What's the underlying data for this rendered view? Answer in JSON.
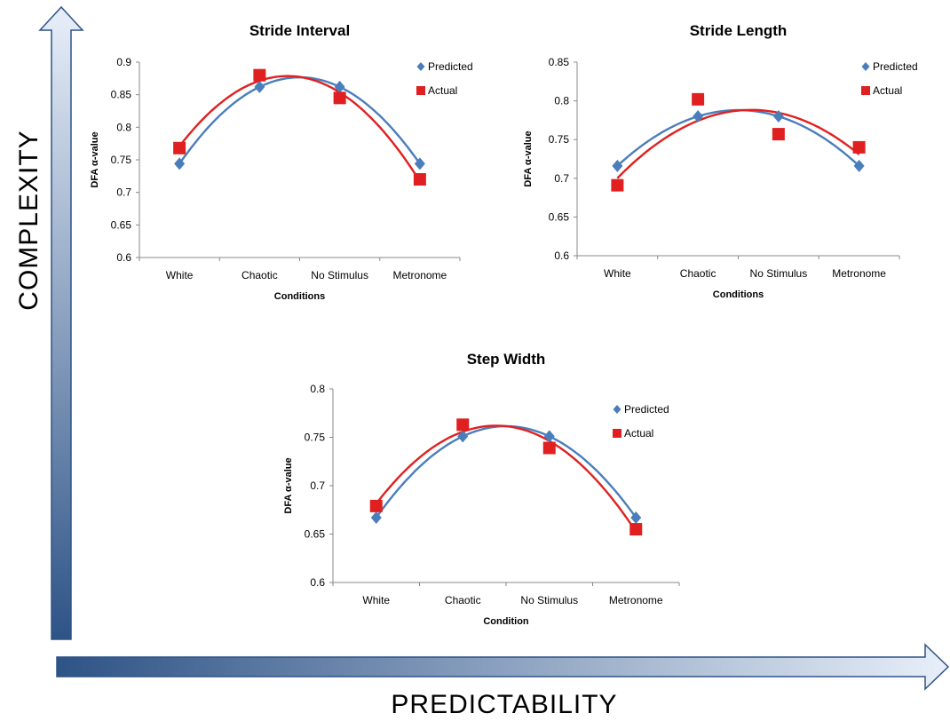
{
  "axes": {
    "vertical_label": "COMPLEXITY",
    "horizontal_label": "PREDICTABILITY"
  },
  "colors": {
    "predicted": "#4a7ebb",
    "actual": "#e02020",
    "arrow_dark": "#2e5386",
    "arrow_light": "#dbe6f5"
  },
  "chart_data": [
    {
      "type": "scatter",
      "title": "Stride Interval",
      "xlabel": "Conditions",
      "ylabel": "DFA α-value",
      "categories": [
        "White",
        "Chaotic",
        "No Stimulus",
        "Metronome"
      ],
      "ylim": [
        0.6,
        0.9
      ],
      "yticks": [
        "0.6",
        "0.65",
        "0.7",
        "0.75",
        "0.8",
        "0.85",
        "0.9"
      ],
      "legend_position": "top-right",
      "series": [
        {
          "name": "Predicted",
          "marker": "diamond",
          "values": [
            0.744,
            0.862,
            0.862,
            0.744
          ]
        },
        {
          "name": "Actual",
          "marker": "square",
          "values": [
            0.768,
            0.88,
            0.845,
            0.72
          ]
        }
      ]
    },
    {
      "type": "scatter",
      "title": "Stride Length",
      "xlabel": "Conditions",
      "ylabel": "DFA α-value",
      "categories": [
        "White",
        "Chaotic",
        "No Stimulus",
        "Metronome"
      ],
      "ylim": [
        0.6,
        0.85
      ],
      "yticks": [
        "0.6",
        "0.65",
        "0.7",
        "0.75",
        "0.8",
        "0.85"
      ],
      "legend_position": "top-right",
      "series": [
        {
          "name": "Predicted",
          "marker": "diamond",
          "values": [
            0.716,
            0.78,
            0.78,
            0.716
          ]
        },
        {
          "name": "Actual",
          "marker": "square",
          "values": [
            0.691,
            0.802,
            0.757,
            0.74
          ]
        }
      ]
    },
    {
      "type": "scatter",
      "title": "Step Width",
      "xlabel": "Condition",
      "ylabel": "DFA α-value",
      "categories": [
        "White",
        "Chaotic",
        "No Stimulus",
        "Metronome"
      ],
      "ylim": [
        0.6,
        0.8
      ],
      "yticks": [
        "0.6",
        "0.65",
        "0.7",
        "0.75",
        "0.8"
      ],
      "legend_position": "top-right",
      "series": [
        {
          "name": "Predicted",
          "marker": "diamond",
          "values": [
            0.667,
            0.751,
            0.751,
            0.667
          ]
        },
        {
          "name": "Actual",
          "marker": "square",
          "values": [
            0.679,
            0.763,
            0.739,
            0.655
          ]
        }
      ]
    }
  ]
}
